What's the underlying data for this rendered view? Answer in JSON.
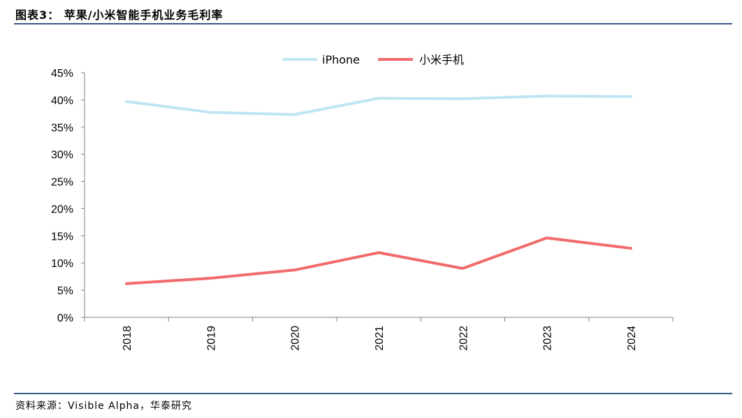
{
  "title": "图表3：  苹果/小米智能手机业务毛利率",
  "source": "资料来源：Visible Alpha，华泰研究",
  "colors": {
    "rule": "#3a5a8c",
    "axis": "#7f7f7f",
    "iphone": "#bde6f2",
    "xiaomi": "#f26b6b"
  },
  "chart_data": {
    "type": "line",
    "categories": [
      "2018",
      "2019",
      "2020",
      "2021",
      "2022",
      "2023",
      "2024"
    ],
    "series": [
      {
        "name": "iPhone",
        "values": [
          39.7,
          37.7,
          37.3,
          40.3,
          40.2,
          40.7,
          40.6
        ]
      },
      {
        "name": "小米手机",
        "values": [
          6.2,
          7.2,
          8.7,
          11.9,
          9.0,
          14.6,
          12.7
        ]
      }
    ],
    "yticks": [
      "0%",
      "5%",
      "10%",
      "15%",
      "20%",
      "25%",
      "30%",
      "35%",
      "40%",
      "45%"
    ],
    "ylim": [
      0,
      45
    ],
    "grid": false,
    "legend_position": "top-center"
  }
}
